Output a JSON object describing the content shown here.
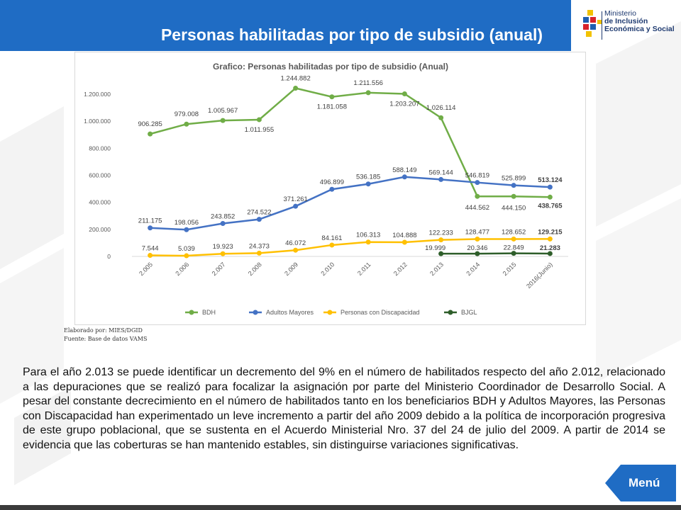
{
  "header": {
    "title": "Personas habilitadas por tipo de subsidio (anual)"
  },
  "logo": {
    "line1": "Ministerio",
    "line2": "de Inclusión",
    "line3": "Económica y Social"
  },
  "colors": {
    "header_blue": "#1f6cc4",
    "bdh": "#70ad47",
    "adultos": "#4472c4",
    "discapacidad": "#ffc000",
    "bjgl": "#2e5e2a"
  },
  "chart_data": {
    "type": "line",
    "title": "Grafico: Personas habilitadas por tipo de subsidio (Anual)",
    "categories": [
      "2.005",
      "2.006",
      "2.007",
      "2.008",
      "2.009",
      "2.010",
      "2.011",
      "2.012",
      "2.013",
      "2.014",
      "2.015",
      "2016(Junio)"
    ],
    "y_ticks": [
      "0",
      "200.000",
      "400.000",
      "600.000",
      "800.000",
      "1.000.000",
      "1.200.000"
    ],
    "ylim": [
      0,
      1300000
    ],
    "legend_position": "bottom",
    "series": [
      {
        "name": "BDH",
        "color": "#70ad47",
        "values": [
          906285,
          979008,
          1005967,
          1011955,
          1244882,
          1181058,
          1211556,
          1203207,
          1026114,
          444562,
          444150,
          438765
        ],
        "labels": [
          "906.285",
          "979.008",
          "1.005.967",
          "1.011.955",
          "1.244.882",
          "1.181.058",
          "1.211.556",
          "1.203.207",
          "1.026.114",
          "444.562",
          "444.150",
          "438.765"
        ]
      },
      {
        "name": "Adultos Mayores",
        "color": "#4472c4",
        "values": [
          211175,
          198056,
          243852,
          274522,
          371261,
          496899,
          536185,
          588149,
          569144,
          546819,
          525899,
          513124
        ],
        "labels": [
          "211.175",
          "198.056",
          "243.852",
          "274.522",
          "371.261",
          "496.899",
          "536.185",
          "588.149",
          "569.144",
          "546.819",
          "525.899",
          "513.124"
        ]
      },
      {
        "name": "Personas con Discapacidad",
        "color": "#ffc000",
        "values": [
          7544,
          5039,
          19923,
          24373,
          46072,
          84161,
          106313,
          104888,
          122233,
          128477,
          128652,
          129215
        ],
        "labels": [
          "7.544",
          "5.039",
          "19.923",
          "24.373",
          "46.072",
          "84.161",
          "106.313",
          "104.888",
          "122.233",
          "128.477",
          "128.652",
          "129.215"
        ]
      },
      {
        "name": "BJGL",
        "color": "#2e5e2a",
        "values": [
          null,
          null,
          null,
          null,
          null,
          null,
          null,
          null,
          19999,
          20346,
          22849,
          21283
        ],
        "labels": [
          "",
          "",
          "",
          "",
          "",
          "",
          "",
          "",
          "19.999",
          "20.346",
          "22.849",
          "21.283"
        ]
      }
    ]
  },
  "source": {
    "line1": "Elaborado por: MIES/DGID",
    "line2": "Fuente: Base de datos VAMS"
  },
  "paragraph": "Para el año 2.013 se puede identificar un decremento del 9% en el número de habilitados respecto del año 2.012, relacionado a las depuraciones que se realizó para focalizar la asignación por parte del Ministerio Coordinador de Desarrollo Social. A pesar del constante decrecimiento en el número de habilitados tanto en los beneficiarios BDH y Adultos Mayores, las Personas con Discapacidad han experimentado un leve incremento a partir del año 2009 debido a la política de incorporación progresiva de este grupo poblacional, que se sustenta en el Acuerdo Ministerial Nro. 37 del 24 de julio del 2009. A partir de 2014 se evidencia que las coberturas se han mantenido estables, sin distinguirse variaciones significativas.",
  "menu": {
    "label": "Menú"
  }
}
